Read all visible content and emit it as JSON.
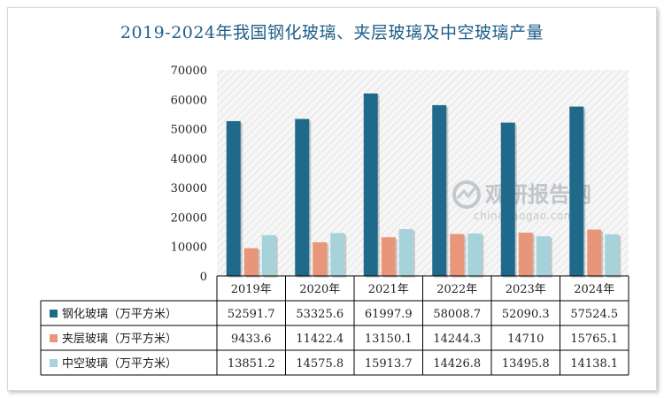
{
  "chart_data": {
    "type": "bar",
    "title": "2019-2024年我国钢化玻璃、夹层玻璃及中空玻璃产量",
    "categories": [
      "2019年",
      "2020年",
      "2021年",
      "2022年",
      "2023年",
      "2024年"
    ],
    "ylim": [
      0,
      70000
    ],
    "yticks": [
      0,
      10000,
      20000,
      30000,
      40000,
      50000,
      60000,
      70000
    ],
    "legend_placement": "data-table-left",
    "series": [
      {
        "name": "钢化玻璃（万平方米）",
        "color": "#1f6a8a",
        "values": [
          52591.7,
          53325.6,
          61997.9,
          58008.7,
          52090.3,
          57524.5
        ],
        "labels": [
          "52591.7",
          "53325.6",
          "61997.9",
          "58008.7",
          "52090.3",
          "57524.5"
        ]
      },
      {
        "name": "夹层玻璃（万平方米）",
        "color": "#e8967a",
        "values": [
          9433.6,
          11422.4,
          13150.1,
          14244.3,
          14710,
          15765.1
        ],
        "labels": [
          "9433.6",
          "11422.4",
          "13150.1",
          "14244.3",
          "14710",
          "15765.1"
        ]
      },
      {
        "name": "中空玻璃（万平方米）",
        "color": "#a6d2da",
        "values": [
          13851.2,
          14575.8,
          15913.7,
          14426.8,
          13495.8,
          14138.1
        ],
        "labels": [
          "13851.2",
          "14575.8",
          "15913.7",
          "14426.8",
          "13495.8",
          "14138.1"
        ]
      }
    ]
  },
  "watermark": {
    "brand": "观研报告网",
    "url": "chinabaogao.com"
  }
}
